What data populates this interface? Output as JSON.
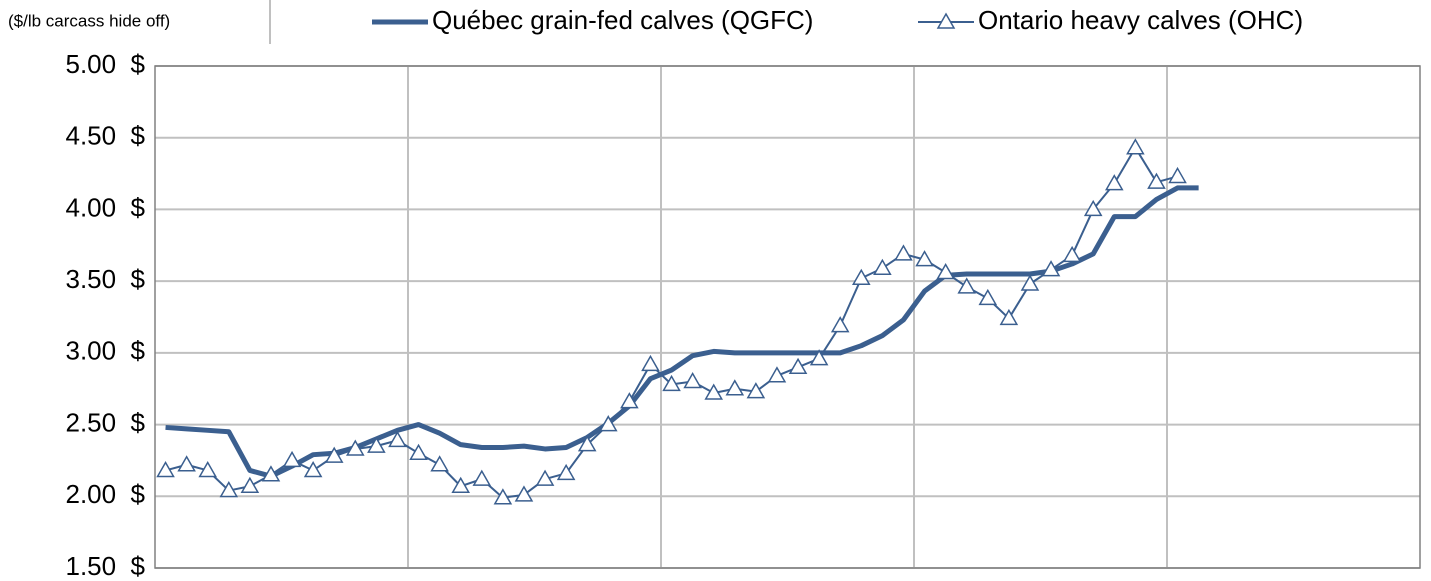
{
  "chart_data": {
    "type": "line",
    "y_axis_label": "($/lb carcass hide off)",
    "categories": [
      null,
      null,
      null,
      null,
      null,
      null,
      null,
      null,
      null,
      null,
      null,
      null,
      null,
      null,
      null,
      null,
      null,
      null,
      null,
      null,
      null,
      null,
      null,
      null,
      null,
      null,
      null,
      null,
      null,
      null,
      null,
      null,
      null,
      null,
      null,
      null,
      null,
      null,
      null,
      null,
      null,
      null,
      null,
      null,
      null,
      null,
      null,
      null,
      null,
      null,
      null,
      null,
      null,
      null,
      null,
      null,
      null,
      null,
      null,
      null
    ],
    "series": [
      {
        "name": "Québec grain-fed calves (QGFC)",
        "color": "#3b5f8f",
        "marker": "none",
        "values": [
          2.48,
          2.47,
          2.46,
          2.45,
          2.18,
          2.14,
          2.21,
          2.29,
          2.3,
          2.34,
          2.4,
          2.46,
          2.5,
          2.44,
          2.36,
          2.34,
          2.34,
          2.35,
          2.33,
          2.34,
          2.41,
          2.51,
          2.63,
          2.82,
          2.88,
          2.98,
          3.01,
          3.0,
          3.0,
          3.0,
          3.0,
          3.0,
          3.0,
          3.05,
          3.12,
          3.23,
          3.43,
          3.54,
          3.55,
          3.55,
          3.55,
          3.55,
          3.57,
          3.62,
          3.69,
          3.95,
          3.95,
          4.07,
          4.15,
          4.15,
          null,
          null,
          null,
          null,
          null,
          null,
          null,
          null,
          null,
          null
        ]
      },
      {
        "name": "Ontario heavy calves (OHC)",
        "color": "#3b5f8f",
        "marker": "triangle",
        "values": [
          2.18,
          2.22,
          2.18,
          2.04,
          2.07,
          2.15,
          2.25,
          2.18,
          2.28,
          2.33,
          2.35,
          2.39,
          2.3,
          2.22,
          2.07,
          2.12,
          1.99,
          2.01,
          2.12,
          2.16,
          2.36,
          2.5,
          2.66,
          2.92,
          2.78,
          2.8,
          2.72,
          2.75,
          2.73,
          2.84,
          2.9,
          2.96,
          3.19,
          3.52,
          3.59,
          3.69,
          3.65,
          3.56,
          3.46,
          3.38,
          3.24,
          3.48,
          3.58,
          3.68,
          4.0,
          4.18,
          4.43,
          4.19,
          4.23,
          null,
          null,
          null,
          null,
          null,
          null,
          null,
          null,
          null,
          null,
          null
        ]
      }
    ],
    "ylim": [
      1.5,
      5
    ],
    "yticks": [
      {
        "value": 1.5,
        "label": "1.50  $"
      },
      {
        "value": 2,
        "label": "2.00  $"
      },
      {
        "value": 2.5,
        "label": "2.50  $"
      },
      {
        "value": 3,
        "label": "3.00  $"
      },
      {
        "value": 3.5,
        "label": "3.50  $"
      },
      {
        "value": 4,
        "label": "4.00  $"
      },
      {
        "value": 4.5,
        "label": "4.50  $"
      },
      {
        "value": 5,
        "label": "5.00  $"
      }
    ],
    "grid": true,
    "legend": "top"
  }
}
